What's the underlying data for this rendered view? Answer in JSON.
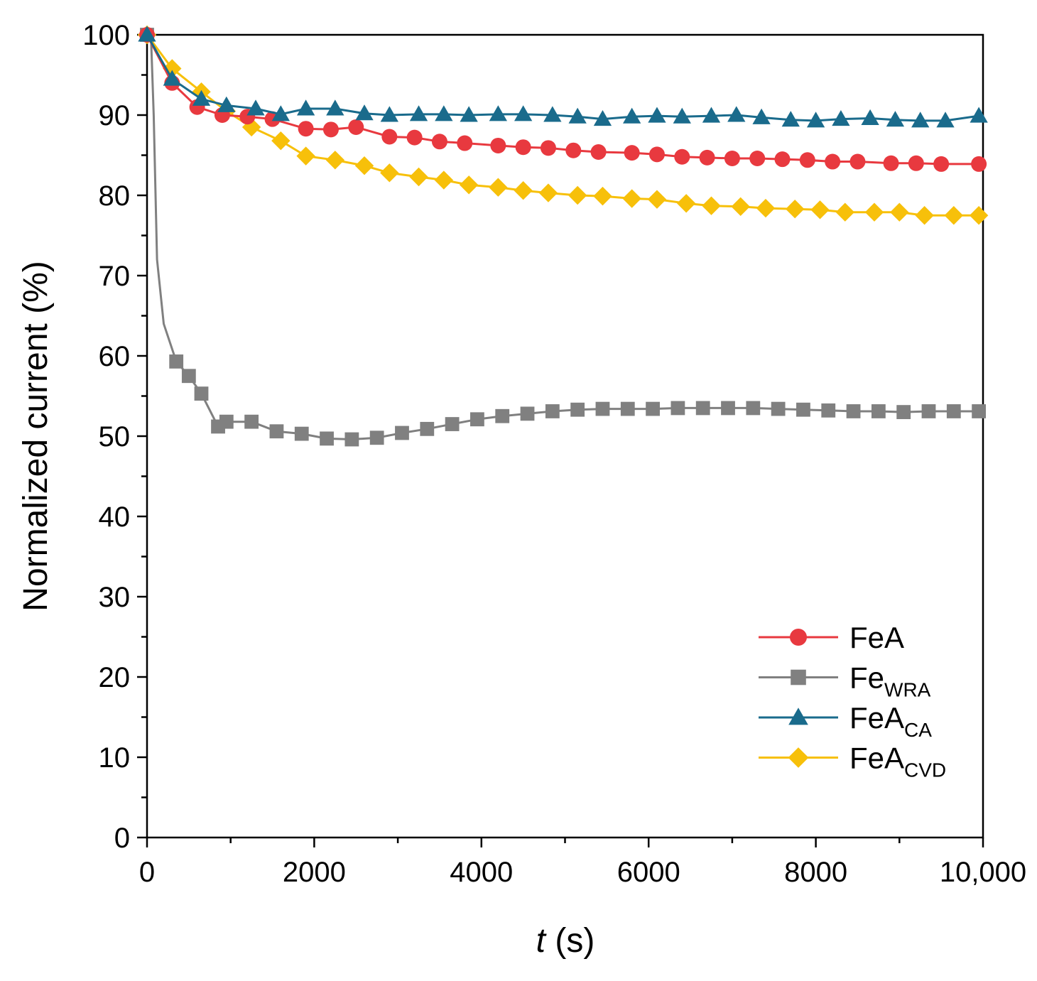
{
  "chart_data": {
    "type": "line",
    "title": "",
    "xlabel_italic": "t",
    "xlabel_unit": " (s)",
    "ylabel": "Normalized current (%)",
    "xlim": [
      0,
      10000
    ],
    "ylim": [
      0,
      100
    ],
    "x_ticks": [
      0,
      2000,
      4000,
      6000,
      8000,
      10000
    ],
    "x_tick_labels": [
      "0",
      "2000",
      "4000",
      "6000",
      "8000",
      "10,000"
    ],
    "y_ticks": [
      0,
      10,
      20,
      30,
      40,
      50,
      60,
      70,
      80,
      90,
      100
    ],
    "y_tick_labels": [
      "0",
      "10",
      "20",
      "30",
      "40",
      "50",
      "60",
      "70",
      "80",
      "90",
      "100"
    ],
    "grid": false,
    "legend_position": "bottom-right",
    "series": [
      {
        "name": "FeA",
        "name_main": "FeA",
        "name_sub": "",
        "color": "#e8393f",
        "marker": "circle",
        "x": [
          0,
          300,
          600,
          900,
          1200,
          1500,
          1900,
          2200,
          2500,
          2900,
          3200,
          3500,
          3800,
          4200,
          4500,
          4800,
          5100,
          5400,
          5800,
          6100,
          6400,
          6700,
          7000,
          7300,
          7600,
          7900,
          8200,
          8500,
          8900,
          9200,
          9500,
          9950
        ],
        "y": [
          100,
          94,
          91,
          90,
          89.8,
          89.5,
          88.3,
          88.2,
          88.5,
          87.3,
          87.2,
          86.7,
          86.5,
          86.2,
          86,
          85.9,
          85.6,
          85.4,
          85.3,
          85.1,
          84.8,
          84.7,
          84.6,
          84.6,
          84.5,
          84.4,
          84.2,
          84.2,
          84,
          84,
          83.9,
          83.9
        ]
      },
      {
        "name": "FeWRA",
        "name_main": "Fe",
        "name_sub": "WRA",
        "color": "#808080",
        "marker": "square",
        "x": [
          0,
          50,
          80,
          120,
          200,
          350,
          500,
          650,
          850,
          950,
          1250,
          1550,
          1850,
          2150,
          2450,
          2750,
          3050,
          3350,
          3650,
          3950,
          4250,
          4550,
          4850,
          5150,
          5450,
          5750,
          6050,
          6350,
          6650,
          6950,
          7250,
          7550,
          7850,
          8150,
          8450,
          8750,
          9050,
          9350,
          9650,
          9950
        ],
        "y": [
          100,
          99,
          90,
          72,
          64,
          59.3,
          57.5,
          55.3,
          51.2,
          51.8,
          51.8,
          50.6,
          50.3,
          49.7,
          49.6,
          49.8,
          50.4,
          50.9,
          51.5,
          52.1,
          52.5,
          52.8,
          53.1,
          53.3,
          53.4,
          53.4,
          53.4,
          53.5,
          53.5,
          53.5,
          53.5,
          53.4,
          53.3,
          53.2,
          53.1,
          53.1,
          53,
          53.1,
          53.1,
          53.1
        ]
      },
      {
        "name": "FeACA",
        "name_main": "FeA",
        "name_sub": "CA",
        "color": "#1a6b8c",
        "marker": "triangle",
        "x": [
          0,
          300,
          650,
          950,
          1300,
          1600,
          1900,
          2250,
          2600,
          2900,
          3250,
          3550,
          3850,
          4200,
          4500,
          4850,
          5150,
          5450,
          5800,
          6100,
          6400,
          6750,
          7050,
          7350,
          7700,
          8000,
          8300,
          8650,
          8950,
          9250,
          9550,
          9950
        ],
        "y": [
          100,
          94.5,
          92,
          91.2,
          90.8,
          90.1,
          90.8,
          90.8,
          90.2,
          90,
          90.1,
          90.1,
          90,
          90.1,
          90.1,
          90,
          89.8,
          89.5,
          89.8,
          89.9,
          89.8,
          89.9,
          90,
          89.7,
          89.4,
          89.3,
          89.5,
          89.6,
          89.4,
          89.3,
          89.3,
          89.9
        ]
      },
      {
        "name": "FeACVD",
        "name_main": "FeA",
        "name_sub": "CVD",
        "color": "#f7c00a",
        "marker": "diamond",
        "x": [
          0,
          300,
          650,
          950,
          1250,
          1600,
          1900,
          2250,
          2600,
          2900,
          3250,
          3550,
          3850,
          4200,
          4500,
          4800,
          5150,
          5450,
          5800,
          6100,
          6450,
          6750,
          7100,
          7400,
          7750,
          8050,
          8350,
          8700,
          9000,
          9300,
          9650,
          9950
        ],
        "y": [
          100,
          95.8,
          92.9,
          90.5,
          88.5,
          86.8,
          84.9,
          84.4,
          83.7,
          82.8,
          82.3,
          81.9,
          81.3,
          81.0,
          80.6,
          80.3,
          80.0,
          79.9,
          79.6,
          79.5,
          79.0,
          78.7,
          78.6,
          78.4,
          78.3,
          78.2,
          77.9,
          77.9,
          77.9,
          77.5,
          77.5,
          77.5
        ]
      }
    ]
  }
}
